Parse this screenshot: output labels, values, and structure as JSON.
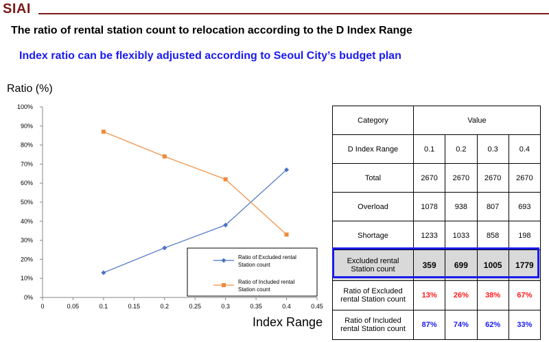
{
  "header": {
    "logo": "SIAI",
    "title": "The ratio of rental station count to relocation according to the D Index Range",
    "subtitle": "Index ratio can be flexibly adjusted according to Seoul City’s budget plan"
  },
  "colors": {
    "brand": "#7a1a1a",
    "subtitle": "#1a1af0",
    "excluded_series": "#4a72c4",
    "included_series": "#f08a3c",
    "red_text": "#ff1a1a",
    "blue_text": "#1a1af0",
    "highlight_border": "#1a1aee"
  },
  "chart_data": {
    "type": "line",
    "title": "",
    "xlabel": "Index Range",
    "ylabel": "Ratio (%)",
    "xlim": [
      0,
      0.45
    ],
    "ylim": [
      0,
      100
    ],
    "x_ticks": [
      "0",
      "0.05",
      "0.1",
      "0.15",
      "0.2",
      "0.25",
      "0.3",
      "0.35",
      "0.4",
      "0.45"
    ],
    "y_ticks": [
      "0%",
      "10%",
      "20%",
      "30%",
      "40%",
      "50%",
      "60%",
      "70%",
      "80%",
      "90%",
      "100%"
    ],
    "grid": false,
    "legend_position": "bottom-right",
    "x": [
      0.1,
      0.2,
      0.3,
      0.4
    ],
    "series": [
      {
        "name": "Ratio of Excluded rental Station count",
        "legend_line1": "Ratio of Excluded rental",
        "legend_line2": "Station count",
        "marker": "diamond",
        "values": [
          13,
          26,
          38,
          67
        ]
      },
      {
        "name": "Ratio of Included rental Station count",
        "legend_line1": "Ratio of Included rental",
        "legend_line2": "Station count",
        "marker": "square",
        "values": [
          87,
          74,
          62,
          33
        ]
      }
    ]
  },
  "table": {
    "category_label": "Category",
    "value_label": "Value",
    "rows": [
      {
        "label": "D Index Range",
        "values": [
          "0.1",
          "0.2",
          "0.3",
          "0.4"
        ]
      },
      {
        "label": "Total",
        "values": [
          "2670",
          "2670",
          "2670",
          "2670"
        ]
      },
      {
        "label": "Overload",
        "values": [
          "1078",
          "938",
          "807",
          "693"
        ]
      },
      {
        "label": "Shortage",
        "values": [
          "1233",
          "1033",
          "858",
          "198"
        ]
      }
    ],
    "excluded": {
      "label_line1": "Excluded rental",
      "label_line2": "Station count",
      "values": [
        "359",
        "699",
        "1005",
        "1779"
      ]
    },
    "ratio_excluded": {
      "label_line1": "Ratio of Excluded",
      "label_line2": "rental Station count",
      "values": [
        "13%",
        "26%",
        "38%",
        "67%"
      ]
    },
    "ratio_included": {
      "label_line1": "Ratio of Included",
      "label_line2": "rental Station count",
      "values": [
        "87%",
        "74%",
        "62%",
        "33%"
      ]
    }
  }
}
